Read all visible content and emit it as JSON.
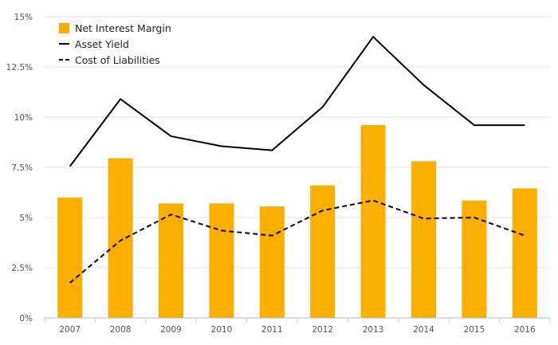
{
  "chart_data": {
    "type": "bar",
    "title": "",
    "xlabel": "",
    "ylabel": "",
    "categories": [
      "2007",
      "2008",
      "2009",
      "2010",
      "2011",
      "2012",
      "2013",
      "2014",
      "2015",
      "2016"
    ],
    "ylim": [
      0,
      15
    ],
    "yticks": [
      0,
      2.5,
      5,
      7.5,
      10,
      12.5,
      15
    ],
    "ytick_labels": [
      "0%",
      "2.5%",
      "5%",
      "7.5%",
      "10%",
      "12.5%",
      "15%"
    ],
    "grid": true,
    "legend_position": "top-left",
    "series": [
      {
        "name": "Net Interest Margin",
        "kind": "bar",
        "color": "#f9ae00",
        "values": [
          6.0,
          7.95,
          5.7,
          5.7,
          5.55,
          6.6,
          9.6,
          7.8,
          5.85,
          6.45
        ]
      },
      {
        "name": "Asset Yield",
        "kind": "line",
        "style": "solid",
        "color": "#000000",
        "values": [
          7.55,
          10.9,
          9.05,
          8.55,
          8.35,
          10.5,
          14.0,
          11.6,
          9.6,
          9.6
        ]
      },
      {
        "name": "Cost of Liabilities",
        "kind": "line",
        "style": "dashed",
        "color": "#000000",
        "values": [
          1.75,
          3.85,
          5.15,
          4.35,
          4.1,
          5.35,
          5.85,
          4.95,
          5.0,
          4.1
        ]
      }
    ]
  }
}
